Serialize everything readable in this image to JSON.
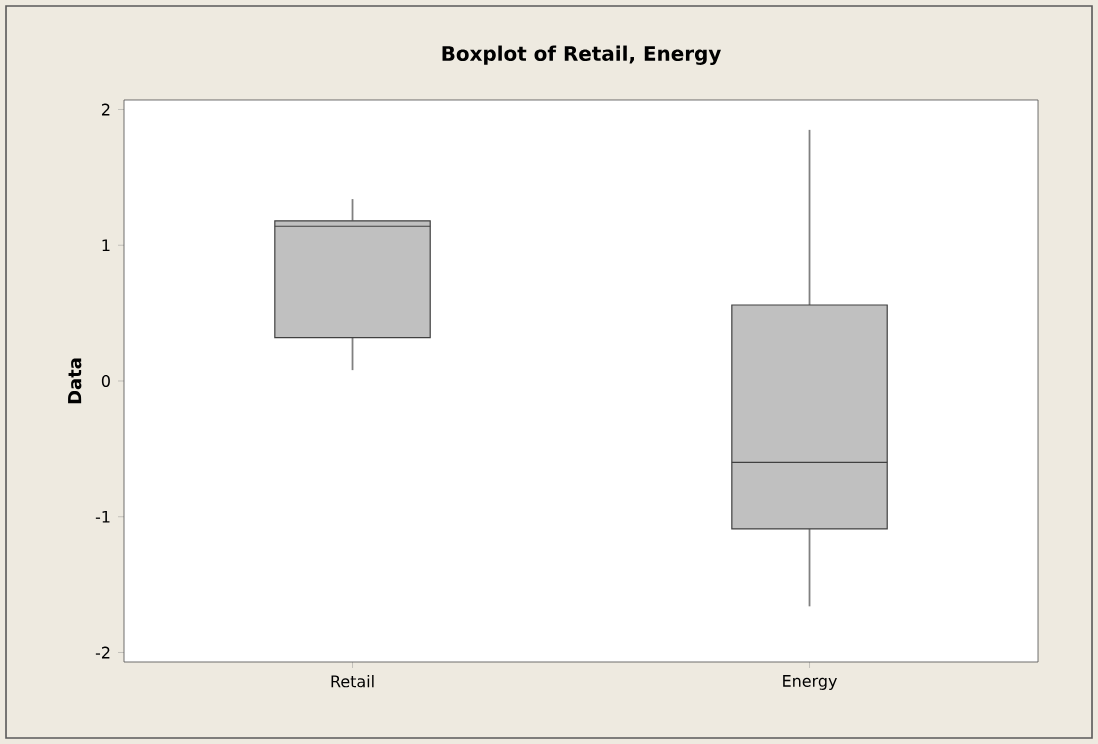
{
  "chart_data": {
    "type": "box",
    "title": "Boxplot of Retail, Energy",
    "ylabel": "Data",
    "categories": [
      "Retail",
      "Energy"
    ],
    "boxes": [
      {
        "low": 0.08,
        "q1": 0.32,
        "median": 1.14,
        "q3": 1.18,
        "high": 1.34
      },
      {
        "low": -1.66,
        "q1": -1.09,
        "median": -0.6,
        "q3": 0.56,
        "high": 1.85
      }
    ],
    "color": "#c0c0c0",
    "ylim": [
      -2.07,
      2.07
    ],
    "yticks": [
      -2,
      -1,
      0,
      1,
      2
    ],
    "grid": false
  }
}
